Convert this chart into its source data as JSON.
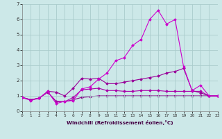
{
  "xlabel": "Windchill (Refroidissement éolien,°C)",
  "bg_color": "#cce8e8",
  "grid_color": "#aacccc",
  "line_color1": "#cc00cc",
  "line_color2": "#990099",
  "line_color3": "#aa00aa",
  "line_color4": "#880088",
  "xlim": [
    0,
    23
  ],
  "ylim": [
    0,
    7
  ],
  "yticks": [
    0,
    1,
    2,
    3,
    4,
    5,
    6,
    7
  ],
  "xticks": [
    0,
    1,
    2,
    3,
    4,
    5,
    6,
    7,
    8,
    9,
    10,
    11,
    12,
    13,
    14,
    15,
    16,
    17,
    18,
    19,
    20,
    21,
    22,
    23
  ],
  "line1_x": [
    0,
    1,
    2,
    3,
    4,
    5,
    6,
    7,
    8,
    9,
    10,
    11,
    12,
    13,
    14,
    15,
    16,
    17,
    18,
    19,
    20,
    21,
    22,
    23
  ],
  "line1_y": [
    0.9,
    0.7,
    0.85,
    1.3,
    0.5,
    0.65,
    0.7,
    1.45,
    1.6,
    2.1,
    2.5,
    3.3,
    3.5,
    4.3,
    4.7,
    6.0,
    6.6,
    5.7,
    6.0,
    2.9,
    1.35,
    1.7,
    1.0,
    1.0
  ],
  "line2_x": [
    0,
    1,
    2,
    3,
    4,
    5,
    6,
    7,
    8,
    9,
    10,
    11,
    12,
    13,
    14,
    15,
    16,
    17,
    18,
    19,
    20,
    21,
    22,
    23
  ],
  "line2_y": [
    0.9,
    0.75,
    0.85,
    1.3,
    1.25,
    1.0,
    1.5,
    2.15,
    2.1,
    2.15,
    1.8,
    1.8,
    1.9,
    2.0,
    2.1,
    2.2,
    2.3,
    2.5,
    2.6,
    2.8,
    1.35,
    1.2,
    1.0,
    1.0
  ],
  "line3_x": [
    0,
    1,
    2,
    3,
    4,
    5,
    6,
    7,
    8,
    9,
    10,
    11,
    12,
    13,
    14,
    15,
    16,
    17,
    18,
    19,
    20,
    21,
    22,
    23
  ],
  "line3_y": [
    0.9,
    0.75,
    0.85,
    1.25,
    0.65,
    0.62,
    0.9,
    1.4,
    1.45,
    1.5,
    1.35,
    1.35,
    1.3,
    1.3,
    1.35,
    1.35,
    1.35,
    1.3,
    1.3,
    1.3,
    1.3,
    1.3,
    1.0,
    1.0
  ],
  "line4_x": [
    0,
    1,
    2,
    3,
    4,
    5,
    6,
    7,
    8,
    9,
    10,
    11,
    12,
    13,
    14,
    15,
    16,
    17,
    18,
    19,
    20,
    21,
    22,
    23
  ],
  "line4_y": [
    0.9,
    0.75,
    0.85,
    1.25,
    0.62,
    0.62,
    0.75,
    0.9,
    0.95,
    1.0,
    1.0,
    1.0,
    1.0,
    1.0,
    1.0,
    1.0,
    1.0,
    1.0,
    1.0,
    1.0,
    1.0,
    1.0,
    1.0,
    1.0
  ]
}
